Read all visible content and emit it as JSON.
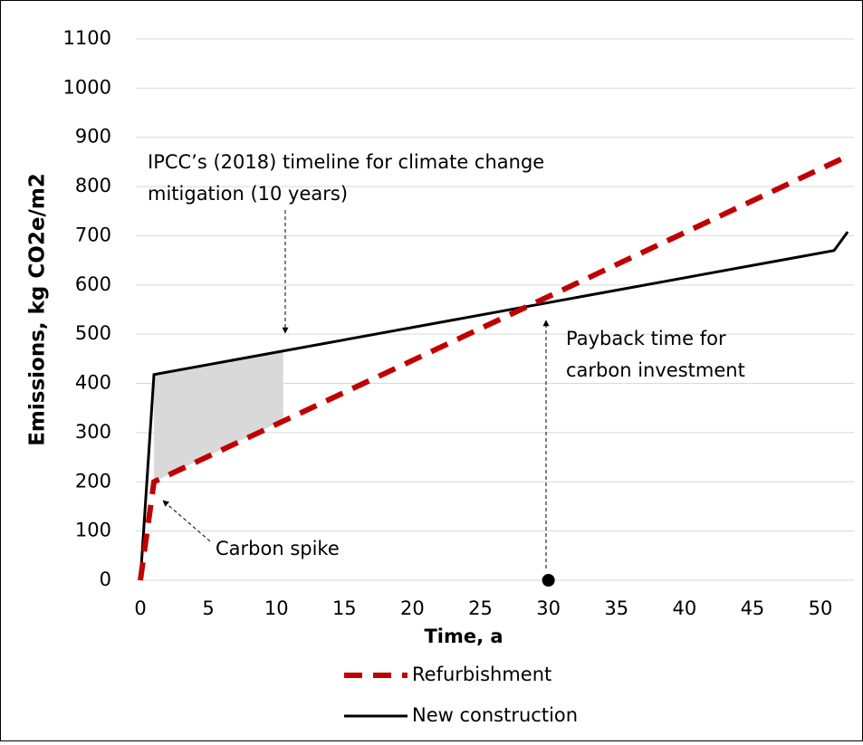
{
  "chart_data": {
    "type": "line",
    "xlabel": "Time, a",
    "ylabel": "Emissions, kg CO2e/m2",
    "xlim": [
      0,
      52.5
    ],
    "ylim": [
      0,
      1100
    ],
    "xticks": [
      0,
      5,
      10,
      15,
      20,
      25,
      30,
      35,
      40,
      45,
      50
    ],
    "yticks": [
      0,
      100,
      200,
      300,
      400,
      500,
      600,
      700,
      800,
      900,
      1000,
      1100
    ],
    "grid": true,
    "legend": "bottom",
    "series": [
      {
        "name": "Refurbishment",
        "color": "#c00000",
        "dashed": true,
        "x": [
          0,
          1,
          52
        ],
        "values": [
          0,
          200,
          862
        ]
      },
      {
        "name": "New construction",
        "color": "#000000",
        "dashed": false,
        "x": [
          0,
          1,
          51,
          52
        ],
        "values": [
          0,
          418,
          670,
          708
        ]
      }
    ],
    "shade": {
      "color": "#d9d9d9",
      "x": [
        1,
        10.5
      ],
      "upper": [
        418,
        466
      ],
      "lower": [
        200,
        325
      ]
    },
    "marker": {
      "x": 30,
      "y": 0
    },
    "annotations": [
      {
        "lines": [
          "IPCC’s (2018) timeline for climate change",
          "mitigation (10 years)"
        ]
      },
      {
        "lines": [
          "Payback time for",
          "carbon investment"
        ]
      },
      {
        "lines": [
          "Carbon spike"
        ]
      }
    ]
  }
}
